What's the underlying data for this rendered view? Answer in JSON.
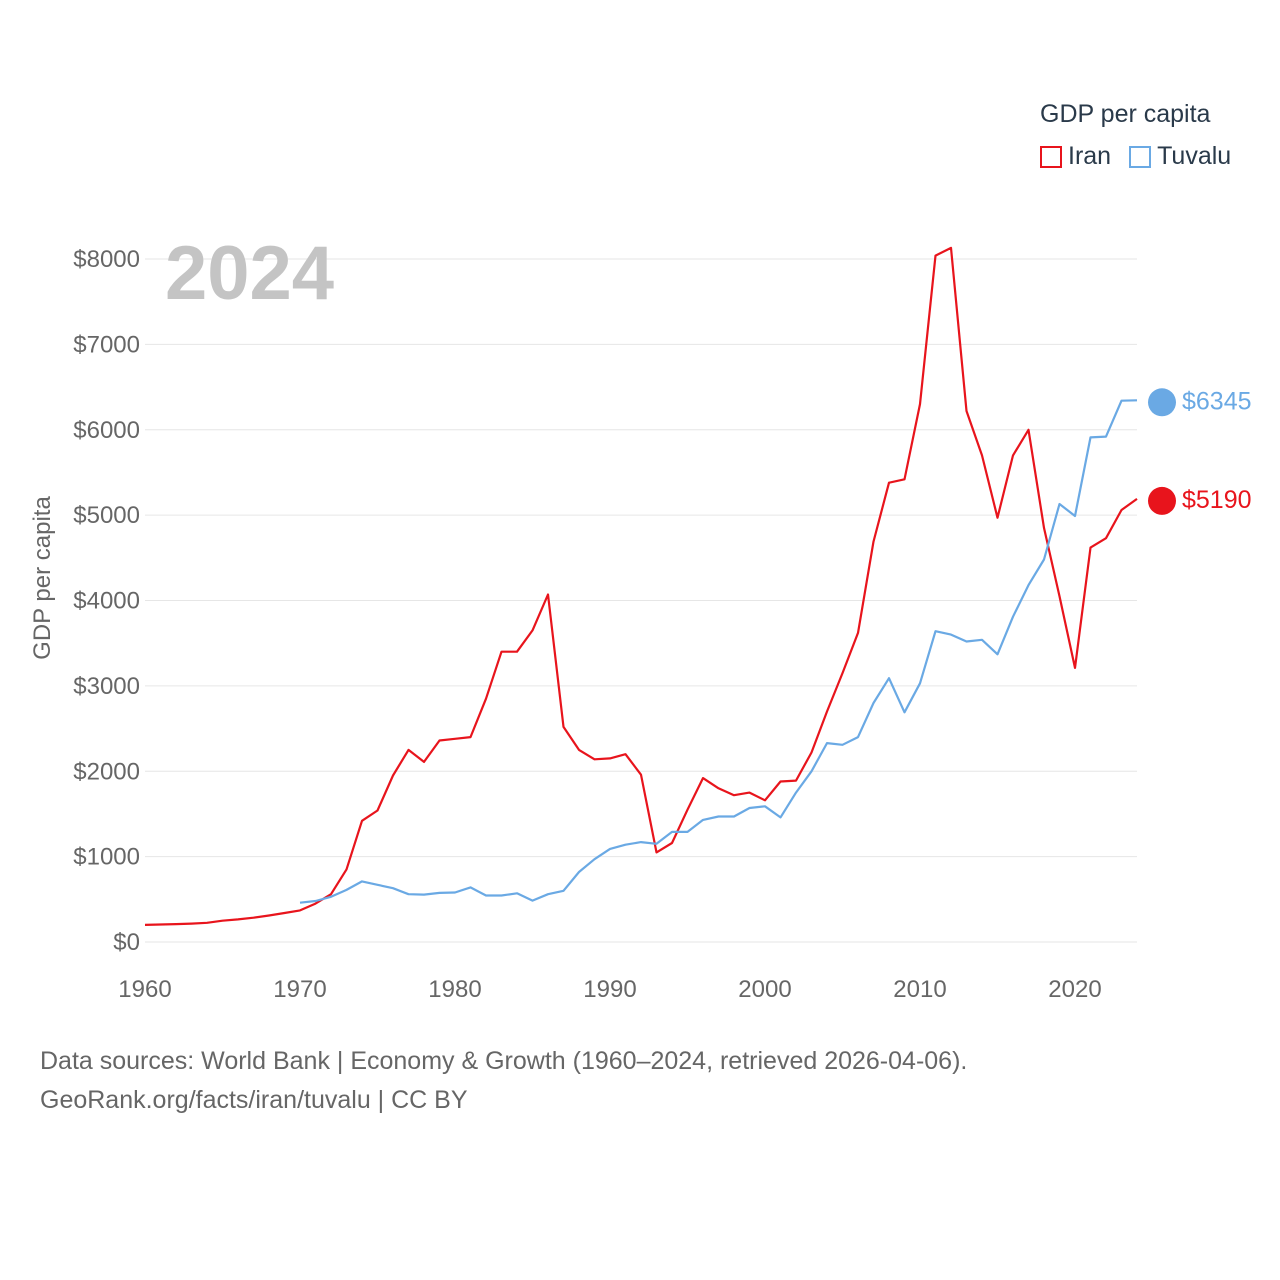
{
  "legend": {
    "title": "GDP per capita",
    "items": [
      {
        "name": "Iran",
        "color": "#e8141c"
      },
      {
        "name": "Tuvalu",
        "color": "#6aa9e4"
      }
    ]
  },
  "year_display": "2024",
  "footer": {
    "line1": "Data sources: World Bank | Economy & Growth (1960–2024, retrieved 2026-04-06).",
    "line2": "GeoRank.org/facts/iran/tuvalu | CC BY"
  },
  "chart_data": {
    "type": "line",
    "title": "",
    "xlabel": "",
    "ylabel": "GDP per capita",
    "xlim": [
      1960,
      2024
    ],
    "ylim": [
      0,
      8000
    ],
    "x_ticks": [
      1960,
      1970,
      1980,
      1990,
      2000,
      2010,
      2020
    ],
    "y_ticks": [
      0,
      1000,
      2000,
      3000,
      4000,
      5000,
      6000,
      7000,
      8000
    ],
    "y_tick_labels": [
      "$0",
      "$1000",
      "$2000",
      "$3000",
      "$4000",
      "$5000",
      "$6000",
      "$7000",
      "$8000"
    ],
    "series": [
      {
        "name": "Iran",
        "color": "#e8141c",
        "end_label": "$5190",
        "end_value": 5190,
        "x": [
          1960,
          1961,
          1962,
          1963,
          1964,
          1965,
          1966,
          1967,
          1968,
          1969,
          1970,
          1971,
          1972,
          1973,
          1974,
          1975,
          1976,
          1977,
          1978,
          1979,
          1980,
          1981,
          1982,
          1983,
          1984,
          1985,
          1986,
          1987,
          1988,
          1989,
          1990,
          1991,
          1992,
          1993,
          1994,
          1995,
          1996,
          1997,
          1998,
          1999,
          2000,
          2001,
          2002,
          2003,
          2004,
          2005,
          2006,
          2007,
          2008,
          2009,
          2010,
          2011,
          2012,
          2013,
          2014,
          2015,
          2016,
          2017,
          2018,
          2019,
          2020,
          2021,
          2022,
          2023,
          2024
        ],
        "values": [
          200,
          205,
          210,
          215,
          225,
          250,
          265,
          285,
          310,
          340,
          370,
          450,
          560,
          850,
          1420,
          1540,
          1950,
          2250,
          2110,
          2360,
          2380,
          2400,
          2850,
          3400,
          3400,
          3650,
          4070,
          2520,
          2250,
          2140,
          2150,
          2200,
          1960,
          1050,
          1160,
          1550,
          1920,
          1800,
          1720,
          1750,
          1660,
          1880,
          1890,
          2220,
          2700,
          3150,
          3620,
          4690,
          5380,
          5420,
          6300,
          8040,
          8130,
          6220,
          5700,
          4970,
          5700,
          6000,
          4850,
          4050,
          3210,
          4620,
          4730,
          5060,
          5190
        ]
      },
      {
        "name": "Tuvalu",
        "color": "#6aa9e4",
        "end_label": "$6345",
        "end_value": 6345,
        "x": [
          1970,
          1971,
          1972,
          1973,
          1974,
          1975,
          1976,
          1977,
          1978,
          1979,
          1980,
          1981,
          1982,
          1983,
          1984,
          1985,
          1986,
          1987,
          1988,
          1989,
          1990,
          1991,
          1992,
          1993,
          1994,
          1995,
          1996,
          1997,
          1998,
          1999,
          2000,
          2001,
          2002,
          2003,
          2004,
          2005,
          2006,
          2007,
          2008,
          2009,
          2010,
          2011,
          2012,
          2013,
          2014,
          2015,
          2016,
          2017,
          2018,
          2019,
          2020,
          2021,
          2022,
          2023,
          2024
        ],
        "values": [
          460,
          480,
          530,
          610,
          710,
          670,
          630,
          560,
          555,
          575,
          580,
          640,
          545,
          545,
          570,
          485,
          560,
          600,
          820,
          970,
          1090,
          1140,
          1170,
          1150,
          1290,
          1290,
          1430,
          1470,
          1470,
          1570,
          1590,
          1460,
          1750,
          2000,
          2330,
          2310,
          2400,
          2800,
          3090,
          2690,
          3030,
          3640,
          3600,
          3520,
          3540,
          3370,
          3810,
          4180,
          4480,
          5130,
          4990,
          5910,
          5920,
          6340,
          6345
        ]
      }
    ]
  }
}
